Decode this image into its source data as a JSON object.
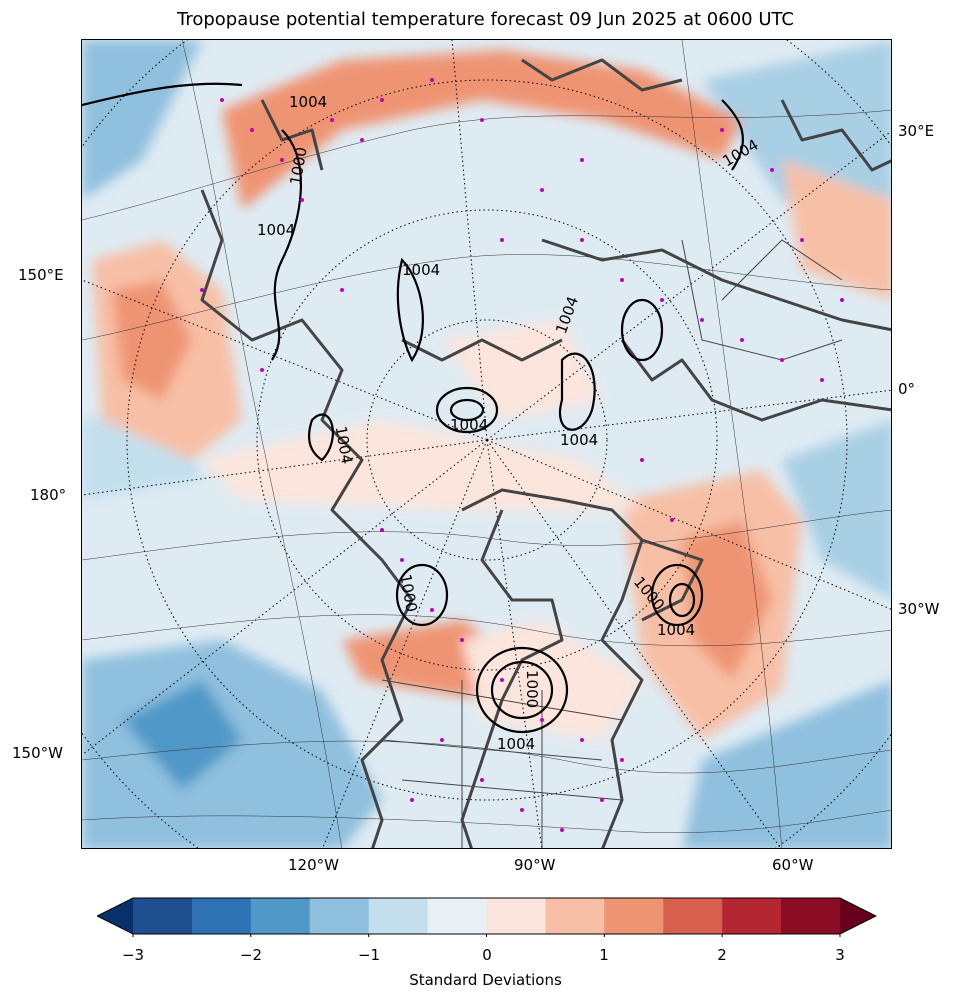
{
  "title": "Tropopause potential temperature forecast 09 Jun 2025 at 0600 UTC",
  "map": {
    "lon_labels": {
      "e30": "30°E",
      "e150": "150°E",
      "zero": "0°",
      "e180": "180°",
      "w30": "30°W",
      "w150": "150°W",
      "w120": "120°W",
      "w90": "90°W",
      "w60": "60°W"
    },
    "contour_labels": [
      "1004",
      "1000",
      "1004",
      "1004",
      "1004",
      "1004",
      "1004",
      "1004",
      "1000",
      "1004",
      "1000",
      "1004",
      "1000",
      "1004"
    ]
  },
  "colorbar": {
    "label": "Standard Deviations",
    "ticks": [
      "−3",
      "−2",
      "−1",
      "0",
      "1",
      "2",
      "3"
    ],
    "colors": [
      "#08306b",
      "#1f4f8e",
      "#2f73b5",
      "#4f98c7",
      "#8fc0de",
      "#c3dfee",
      "#e8f0f6",
      "#fbe5dc",
      "#f7c0a6",
      "#ef9473",
      "#d6604d",
      "#b42631",
      "#8a0c25",
      "#67001f"
    ]
  }
}
